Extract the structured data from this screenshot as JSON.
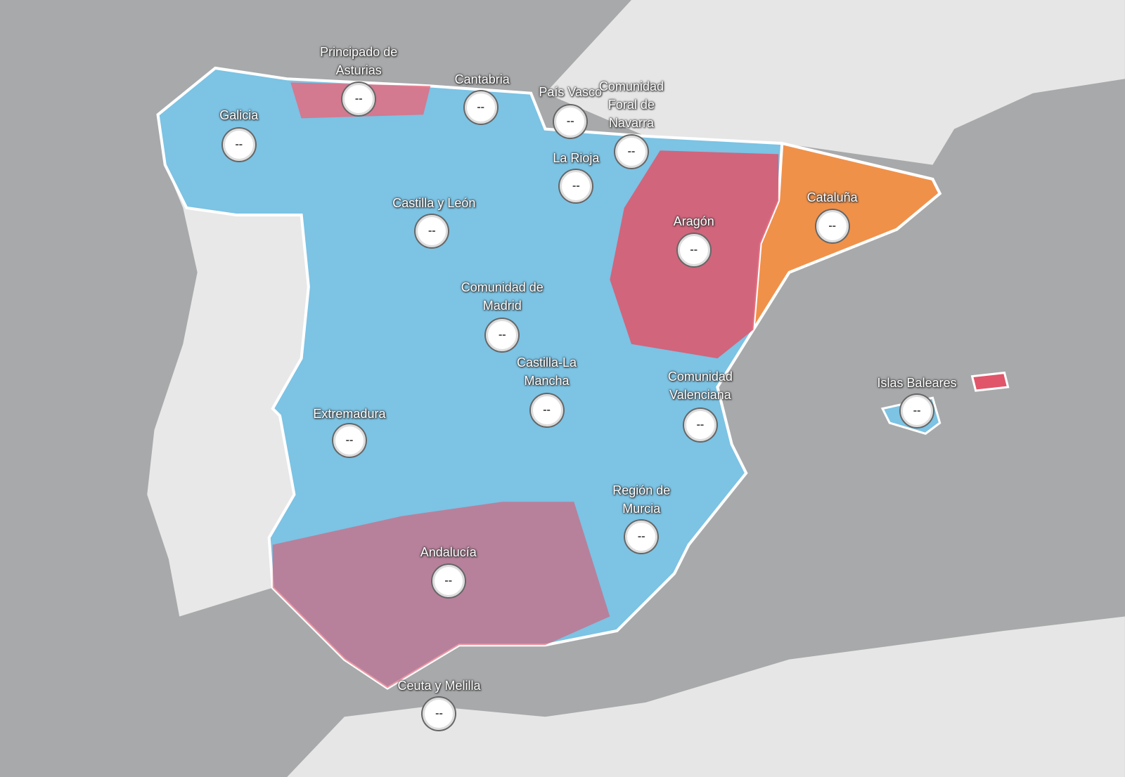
{
  "map": {
    "regions": [
      {
        "name": "Principado de Asturias",
        "badge": "--"
      },
      {
        "name": "Cantabria",
        "badge": "--"
      },
      {
        "name": "País Vasco",
        "badge": "--"
      },
      {
        "name": "Comunidad Foral de Navarra",
        "badge": "--"
      },
      {
        "name": "Galicia",
        "badge": "--"
      },
      {
        "name": "La Rioja",
        "badge": "--"
      },
      {
        "name": "Castilla y León",
        "badge": "--"
      },
      {
        "name": "Aragón",
        "badge": "--"
      },
      {
        "name": "Cataluña",
        "badge": "--"
      },
      {
        "name": "Comunidad de Madrid",
        "badge": "--"
      },
      {
        "name": "Castilla-La Mancha",
        "badge": "--"
      },
      {
        "name": "Comunidad Valenciana",
        "badge": "--"
      },
      {
        "name": "Islas Baleares",
        "badge": "--"
      },
      {
        "name": "Extremadura",
        "badge": "--"
      },
      {
        "name": "Región de Murcia",
        "badge": "--"
      },
      {
        "name": "Andalucía",
        "badge": "--"
      },
      {
        "name": "Ceuta y Melilla",
        "badge": "--"
      }
    ]
  }
}
